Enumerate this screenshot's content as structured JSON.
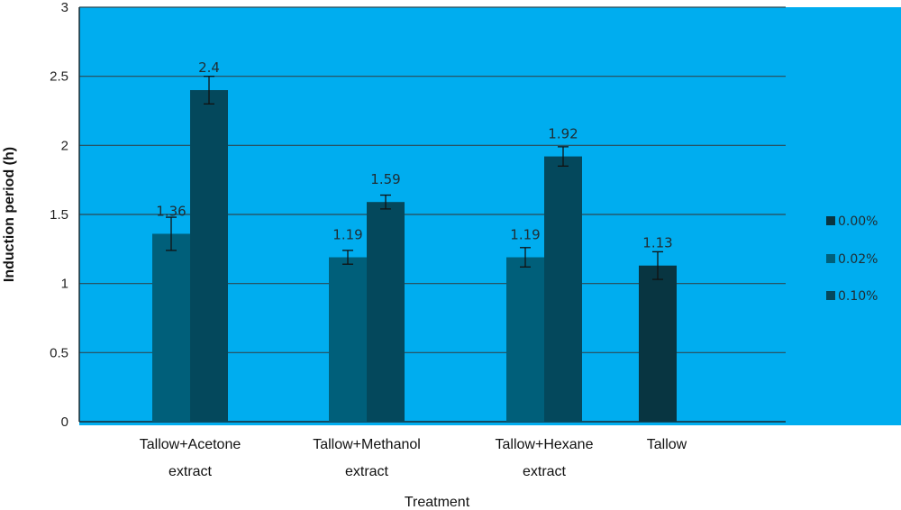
{
  "chart_data": {
    "type": "bar",
    "title": "",
    "xlabel": "Treatment",
    "ylabel": "Induction period (h)",
    "ylim": [
      0,
      3
    ],
    "yticks": [
      0,
      0.5,
      1,
      1.5,
      2,
      2.5,
      3
    ],
    "grid": true,
    "legend_position": "right",
    "plot_background": "#00adef",
    "categories": [
      [
        "Tallow+Acetone",
        "extract"
      ],
      [
        "Tallow+Methanol",
        "extract"
      ],
      [
        "Tallow+Hexane",
        "extract"
      ],
      [
        "Tallow"
      ]
    ],
    "series": [
      {
        "name": "0.00%",
        "color": "#083541",
        "values": [
          null,
          null,
          null,
          1.13
        ],
        "labels": [
          null,
          null,
          null,
          "1.13"
        ],
        "errors": [
          null,
          null,
          null,
          0.1
        ]
      },
      {
        "name": "0.02%",
        "color": "#005f7a",
        "values": [
          1.36,
          1.19,
          1.19,
          null
        ],
        "labels": [
          "1.36",
          "1.19",
          "1.19",
          null
        ],
        "errors": [
          0.12,
          0.05,
          0.07,
          null
        ]
      },
      {
        "name": "0.10%",
        "color": "#04485c",
        "values": [
          2.4,
          1.59,
          1.92,
          null
        ],
        "labels": [
          "2.4",
          "1.59",
          "1.92",
          null
        ],
        "errors": [
          0.1,
          0.05,
          0.07,
          null
        ]
      }
    ]
  }
}
